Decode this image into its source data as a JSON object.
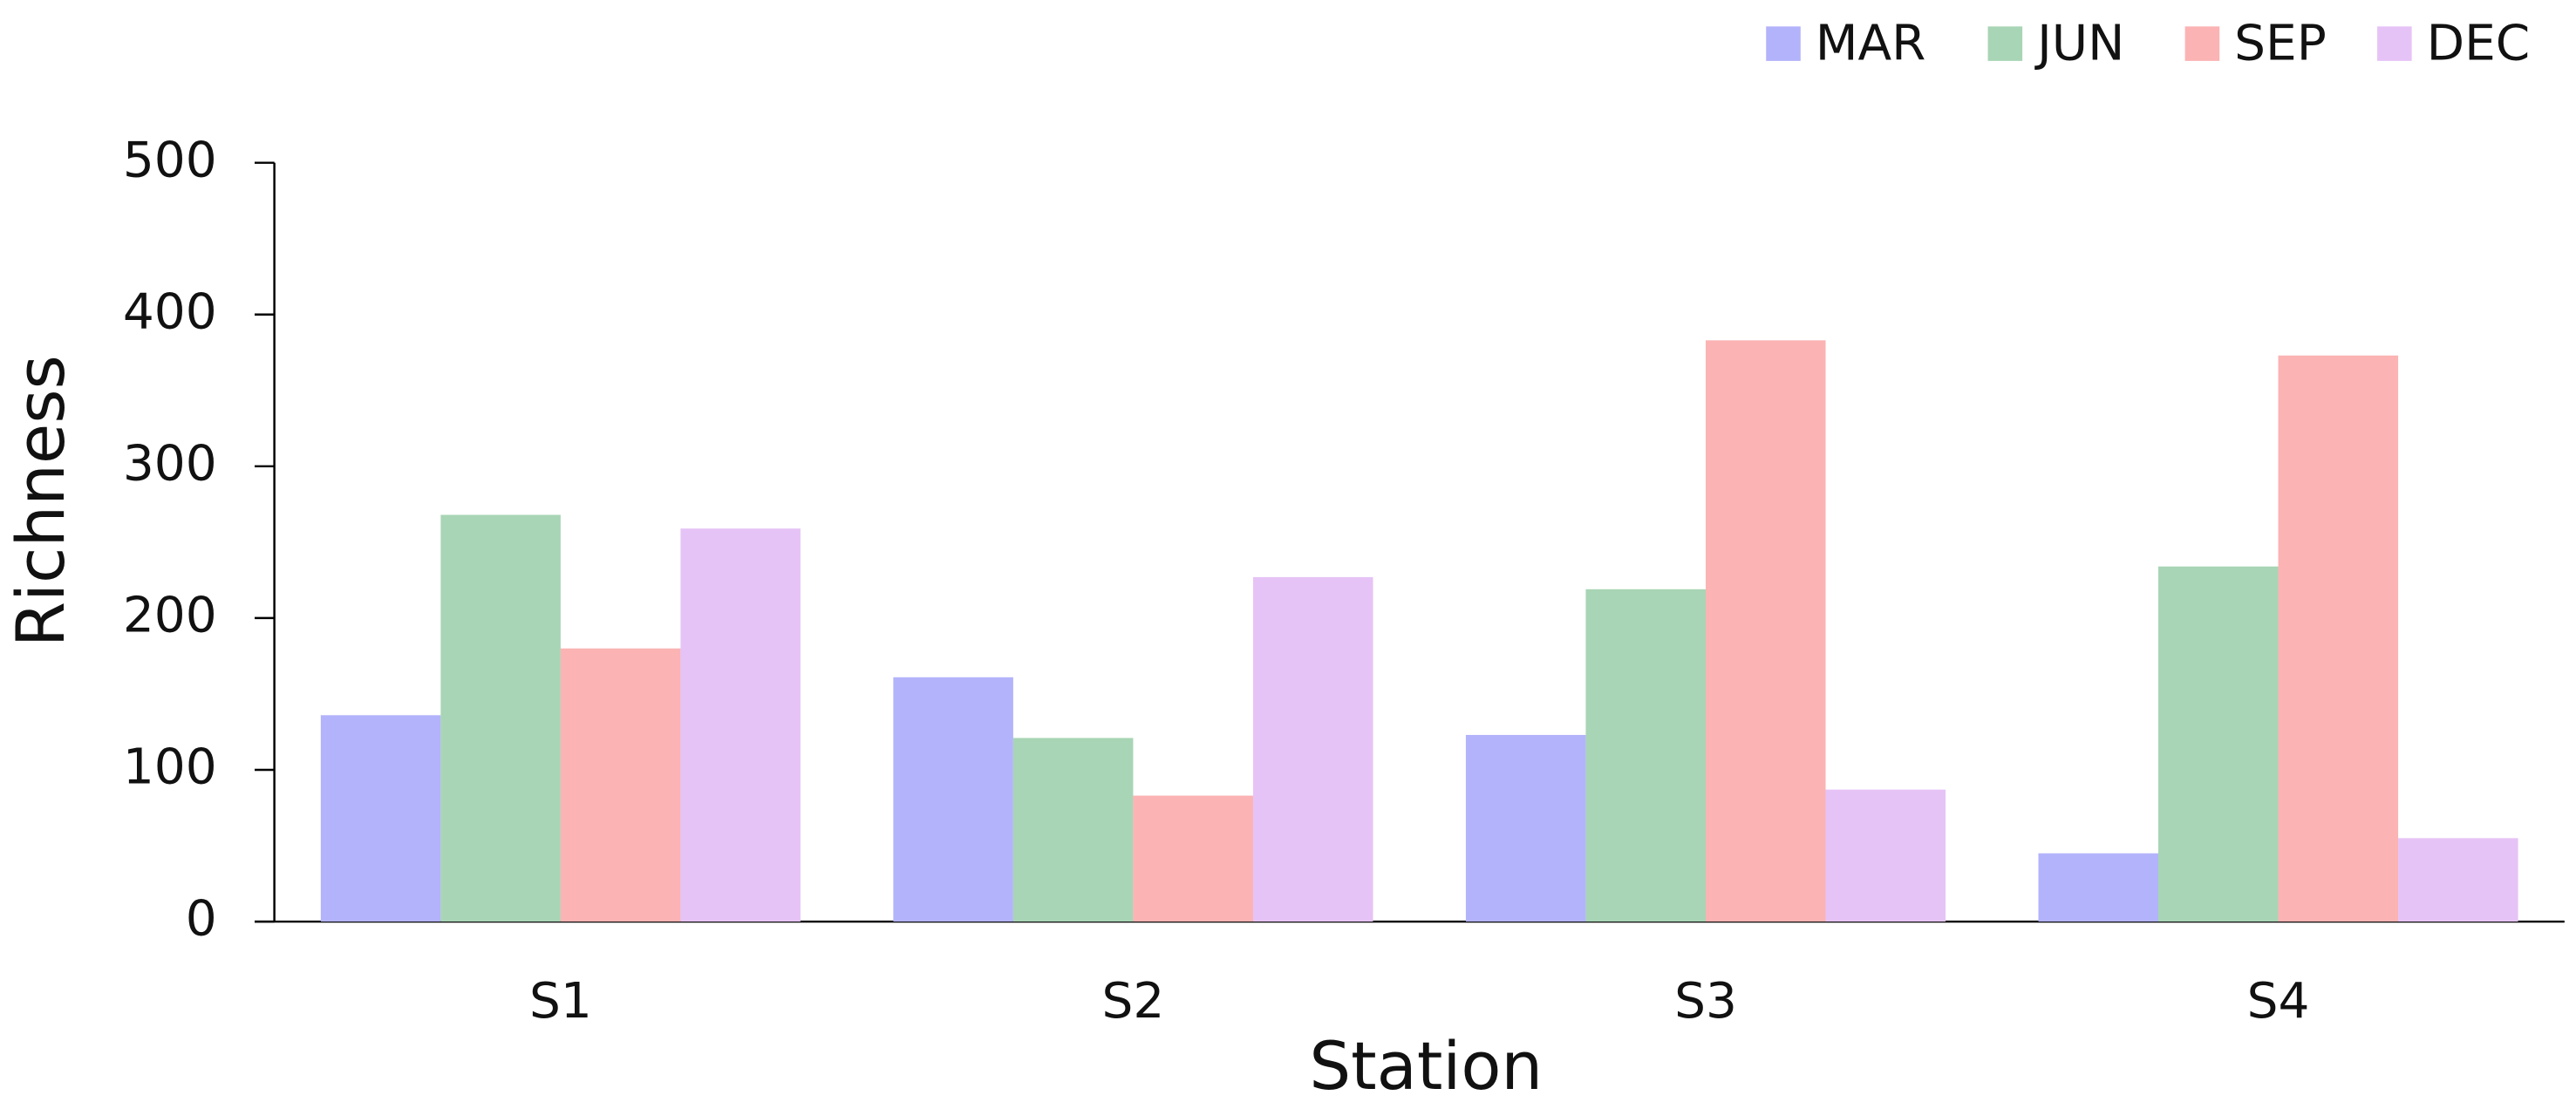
{
  "chart_data": {
    "type": "bar",
    "x_label": "Station",
    "y_label": "Richness",
    "categories": [
      "S1",
      "S2",
      "S3",
      "S4"
    ],
    "series": [
      {
        "name": "MAR",
        "color": "#b3b3fb",
        "values": [
          136,
          161,
          123,
          45
        ]
      },
      {
        "name": "JUN",
        "color": "#a8d5b5",
        "values": [
          268,
          121,
          219,
          234
        ]
      },
      {
        "name": "SEP",
        "color": "#fbb3b3",
        "values": [
          180,
          83,
          383,
          373
        ]
      },
      {
        "name": "DEC",
        "color": "#e6c3f6",
        "values": [
          259,
          227,
          87,
          55
        ]
      }
    ],
    "ylim": [
      0,
      500
    ],
    "yticks": [
      0,
      100,
      200,
      300,
      400,
      500
    ],
    "grid": false,
    "legend": "top-right"
  }
}
